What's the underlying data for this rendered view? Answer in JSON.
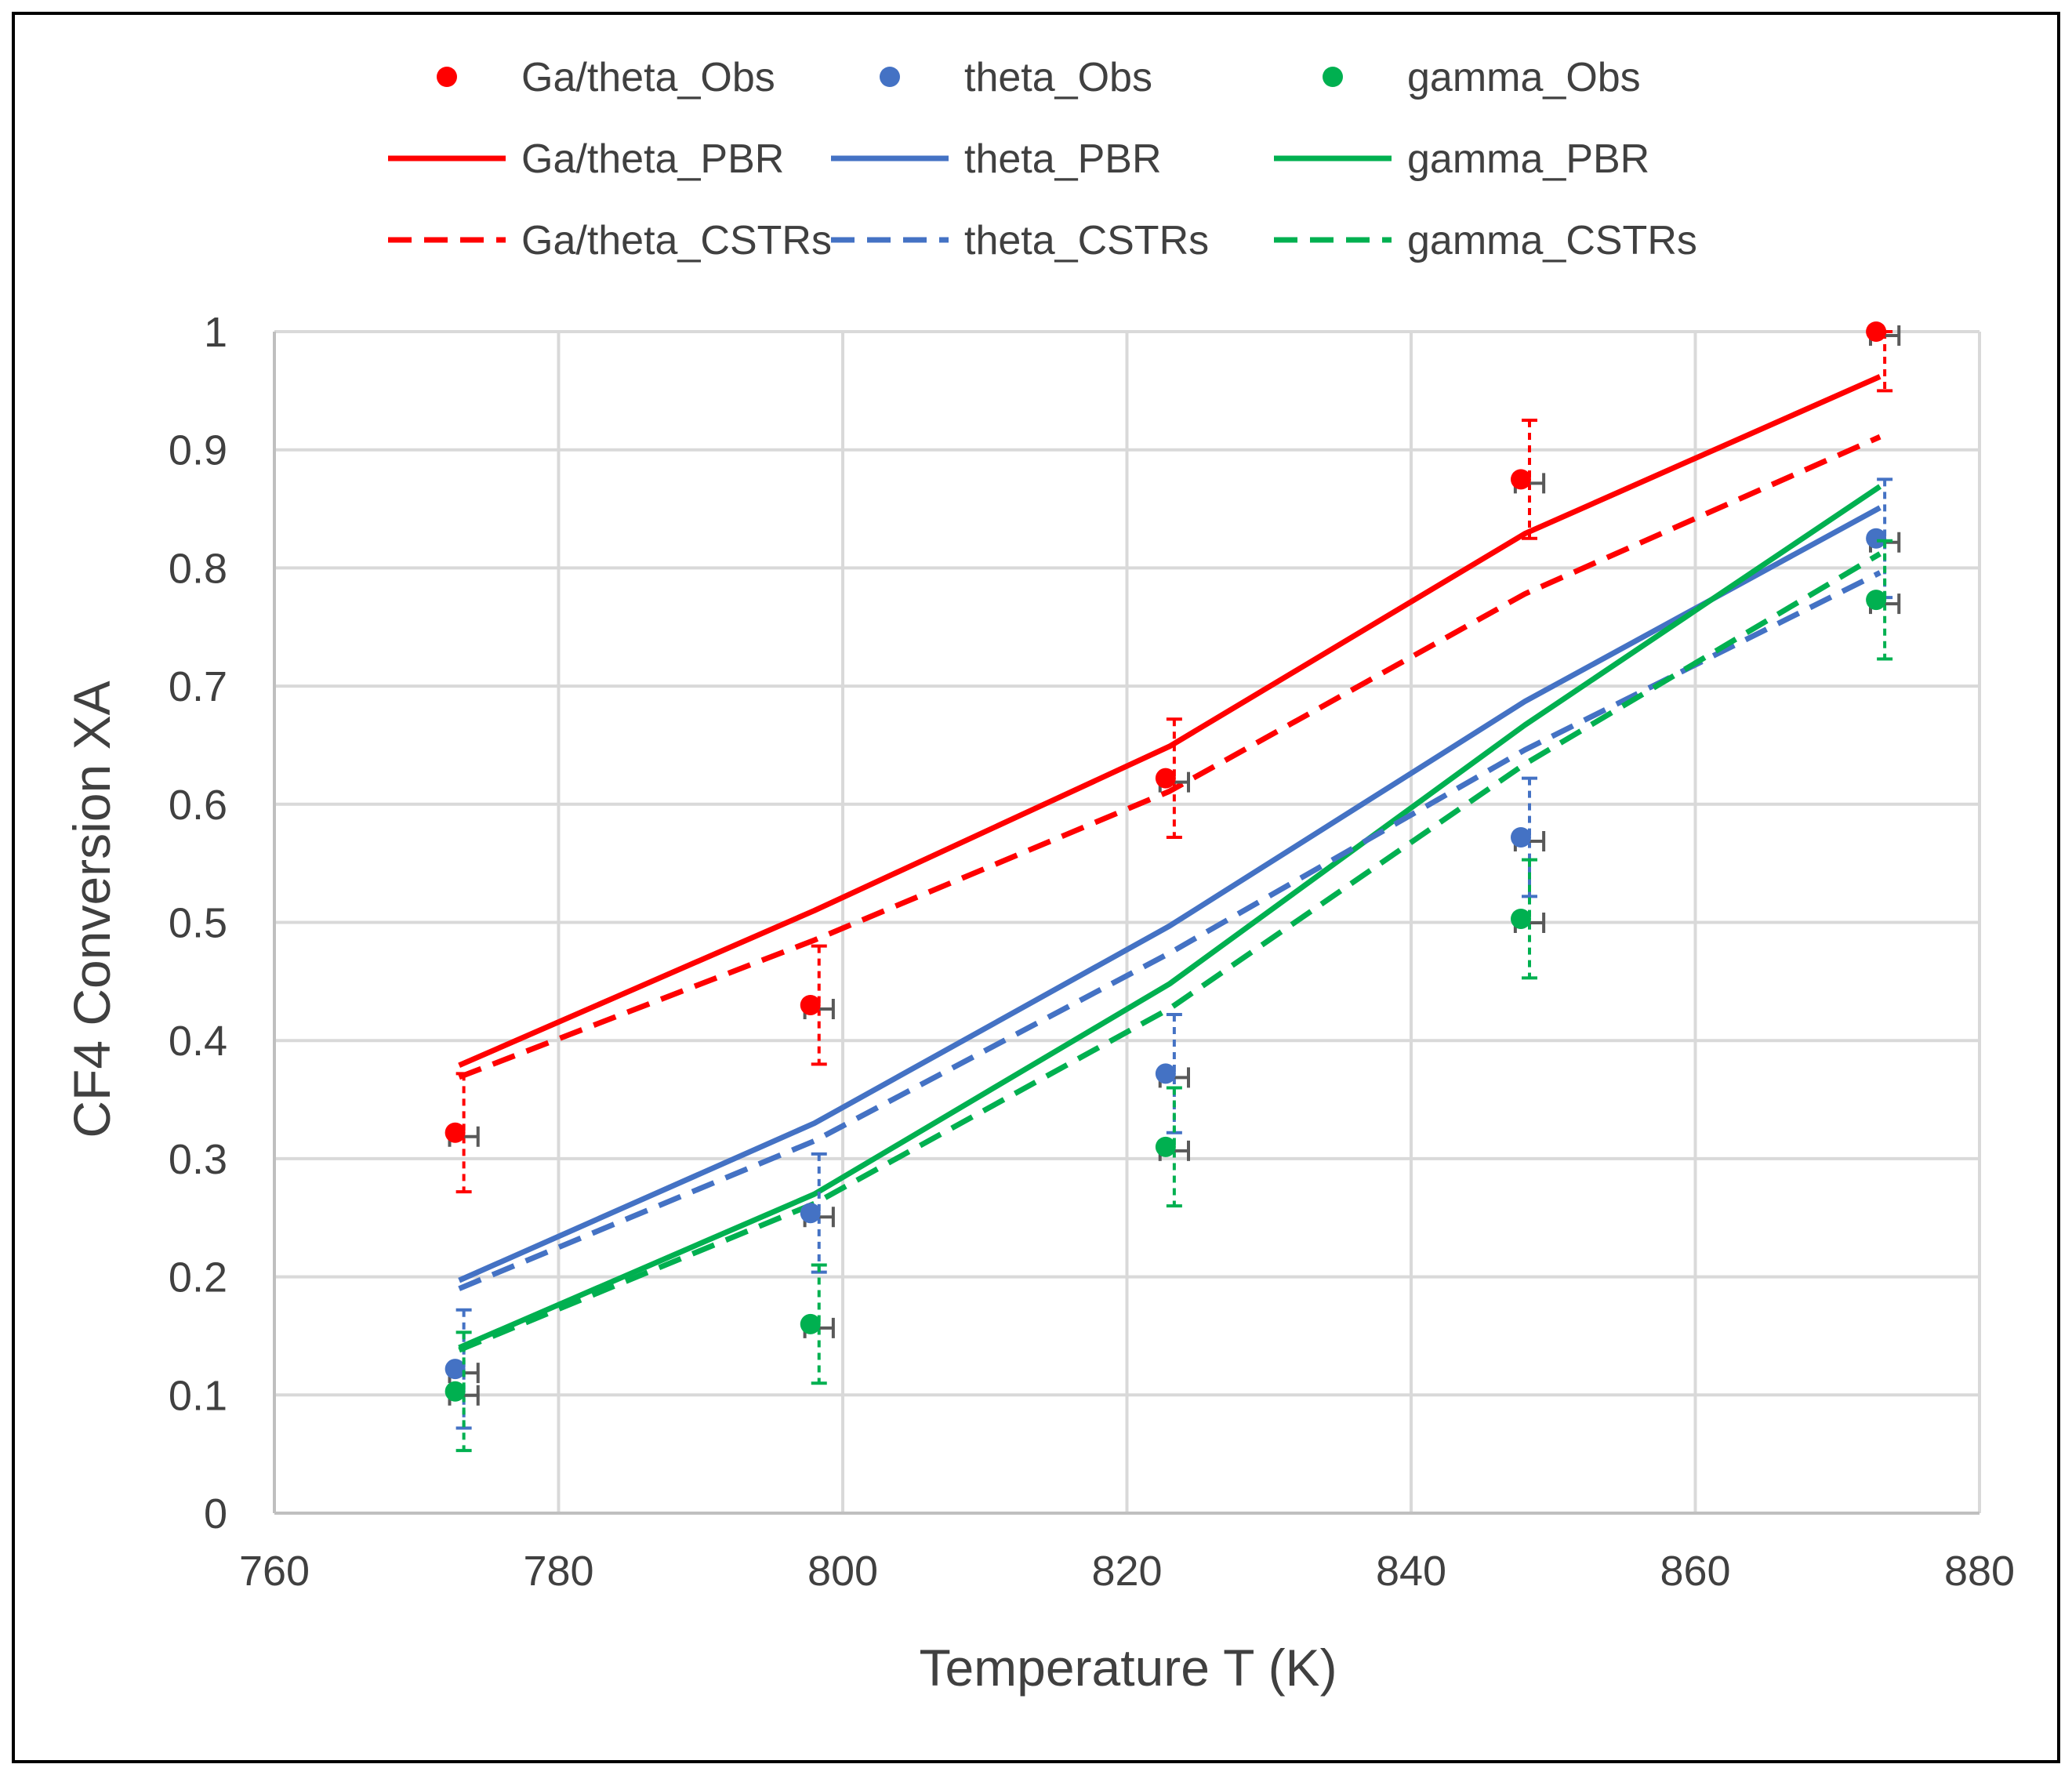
{
  "chart_data": {
    "type": "scatter",
    "title": "",
    "xlabel": "Temperature T (K)",
    "ylabel": "CF4 Conversion XA",
    "xlim": [
      760,
      880
    ],
    "ylim": [
      0,
      1
    ],
    "xticks": [
      760,
      780,
      800,
      820,
      840,
      860,
      880
    ],
    "yticks": [
      0,
      0.1,
      0.2,
      0.3,
      0.4,
      0.5,
      0.6,
      0.7,
      0.8,
      0.9,
      1
    ],
    "ytick_labels": [
      "0",
      "0.1",
      "0.2",
      "0.3",
      "0.4",
      "0.5",
      "0.6",
      "0.7",
      "0.8",
      "0.9",
      "1"
    ],
    "grid": true,
    "legend_position": "top",
    "x": [
      773,
      798,
      823,
      848,
      873
    ],
    "series": [
      {
        "name": "Ga/theta_Obs",
        "kind": "markers",
        "color": "#ff0000",
        "values": [
          0.322,
          0.43,
          0.622,
          0.875,
          1.0
        ],
        "error_y": 0.05,
        "error_x": 1
      },
      {
        "name": "theta_Obs",
        "kind": "markers",
        "color": "#4472c4",
        "values": [
          0.122,
          0.254,
          0.372,
          0.572,
          0.825
        ],
        "error_y": 0.05,
        "error_x": 1
      },
      {
        "name": "gamma_Obs",
        "kind": "markers",
        "color": "#00b050",
        "values": [
          0.103,
          0.16,
          0.31,
          0.503,
          0.773
        ],
        "error_y": 0.05,
        "error_x": 1
      },
      {
        "name": "Ga/theta_PBR",
        "kind": "solid",
        "color": "#ff0000",
        "values": [
          0.379,
          0.51,
          0.649,
          0.829,
          0.962
        ]
      },
      {
        "name": "theta_PBR",
        "kind": "solid",
        "color": "#4472c4",
        "values": [
          0.197,
          0.33,
          0.497,
          0.687,
          0.851
        ]
      },
      {
        "name": "gamma_PBR",
        "kind": "solid",
        "color": "#00b050",
        "values": [
          0.14,
          0.27,
          0.448,
          0.667,
          0.869
        ]
      },
      {
        "name": "Ga/theta_CSTRs",
        "kind": "dashed",
        "color": "#ff0000",
        "values": [
          0.369,
          0.485,
          0.611,
          0.778,
          0.911
        ]
      },
      {
        "name": "theta_CSTRs",
        "kind": "dashed",
        "color": "#4472c4",
        "values": [
          0.19,
          0.315,
          0.474,
          0.646,
          0.796
        ]
      },
      {
        "name": "gamma_CSTRs",
        "kind": "dashed",
        "color": "#00b050",
        "values": [
          0.138,
          0.262,
          0.427,
          0.634,
          0.812
        ]
      }
    ]
  }
}
